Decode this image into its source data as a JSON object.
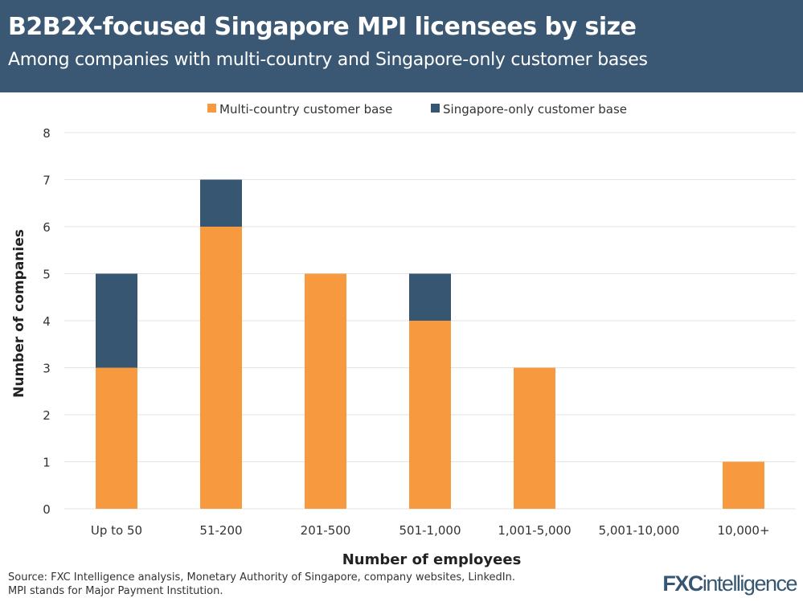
{
  "header": {
    "title": "B2B2X-focused Singapore MPI licensees by size",
    "subtitle": "Among companies with multi-country and Singapore-only customer bases"
  },
  "footer": {
    "source": "Source: FXC Intelligence analysis, Monetary Authority of Singapore, company websites, LinkedIn.",
    "note": "MPI stands for Major Payment Institution.",
    "logo": "FXCintelligence"
  },
  "chart_data": {
    "type": "bar",
    "stacked": true,
    "title": "B2B2X-focused Singapore MPI licensees by size",
    "xlabel": "Number of employees",
    "ylabel": "Number of companies",
    "ylim": [
      0,
      8
    ],
    "yticks": [
      "0",
      "1",
      "2",
      "3",
      "4",
      "5",
      "6",
      "7",
      "8"
    ],
    "grid": true,
    "legend_position": "top",
    "categories": [
      "Up to 50",
      "51-200",
      "201-500",
      "501-1,000",
      "1,001-5,000",
      "5,001-10,000",
      "10,000+"
    ],
    "series": [
      {
        "name": "Multi-country customer base",
        "color": "#f7993f",
        "values": [
          3,
          6,
          5,
          4,
          3,
          0,
          1
        ]
      },
      {
        "name": "Singapore-only customer base",
        "color": "#375672",
        "values": [
          2,
          1,
          0,
          1,
          0,
          0,
          0
        ]
      }
    ]
  }
}
